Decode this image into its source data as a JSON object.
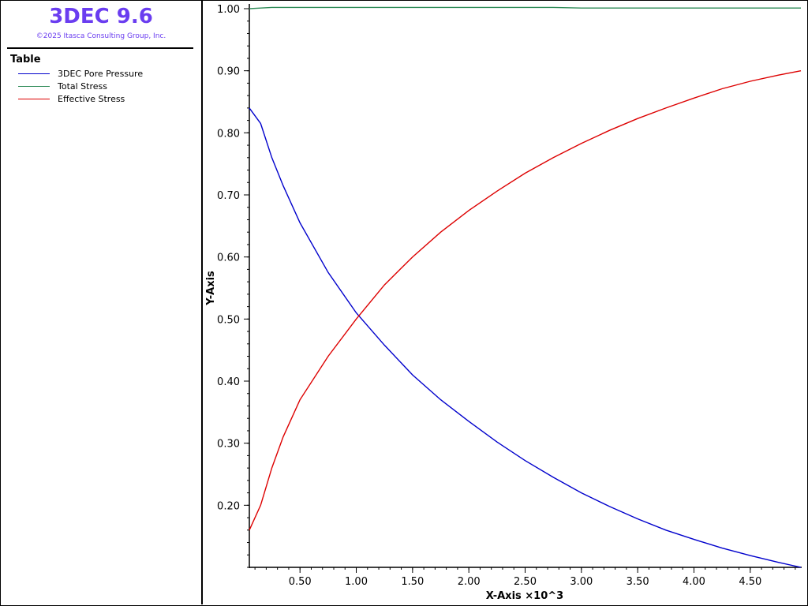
{
  "app": {
    "title": "3DEC 9.6",
    "copyright": "©2025 Itasca Consulting Group, Inc."
  },
  "legend": {
    "heading": "Table"
  },
  "chart_data": {
    "type": "line",
    "xlabel": "X-Axis ×10^3",
    "ylabel": "Y-Axis",
    "xlim": [
      0.05,
      4.95
    ],
    "ylim": [
      0.1,
      1.0
    ],
    "grid": false,
    "legend_placement": "left-panel",
    "x_ticks": [
      0.5,
      1.0,
      1.5,
      2.0,
      2.5,
      3.0,
      3.5,
      4.0,
      4.5
    ],
    "x_tick_labels": [
      "0.50",
      "1.00",
      "1.50",
      "2.00",
      "2.50",
      "3.00",
      "3.50",
      "4.00",
      "4.50"
    ],
    "y_ticks": [
      0.2,
      0.3,
      0.4,
      0.5,
      0.6,
      0.7,
      0.8,
      0.9,
      1.0
    ],
    "y_tick_labels": [
      "0.20",
      "0.30",
      "0.40",
      "0.50",
      "0.60",
      "0.70",
      "0.80",
      "0.90",
      "1.00"
    ],
    "x": [
      0.05,
      0.15,
      0.25,
      0.35,
      0.5,
      0.75,
      1.0,
      1.25,
      1.5,
      1.75,
      2.0,
      2.25,
      2.5,
      2.75,
      3.0,
      3.25,
      3.5,
      3.75,
      4.0,
      4.25,
      4.5,
      4.75,
      4.95
    ],
    "series": [
      {
        "name": "3DEC Pore Pressure",
        "color": "#0000cc",
        "values": [
          0.84,
          0.815,
          0.76,
          0.715,
          0.655,
          0.575,
          0.51,
          0.458,
          0.41,
          0.37,
          0.335,
          0.302,
          0.272,
          0.245,
          0.22,
          0.198,
          0.178,
          0.16,
          0.145,
          0.131,
          0.119,
          0.108,
          0.1
        ]
      },
      {
        "name": "Total Stress",
        "color": "#2e8b57",
        "values": [
          1.0,
          1.001,
          1.002,
          1.002,
          1.002,
          1.002,
          1.002,
          1.002,
          1.002,
          1.002,
          1.002,
          1.002,
          1.002,
          1.002,
          1.001,
          1.001,
          1.001,
          1.001,
          1.001,
          1.001,
          1.001,
          1.001,
          1.001
        ]
      },
      {
        "name": "Effective Stress",
        "color": "#dd0000",
        "values": [
          0.16,
          0.2,
          0.26,
          0.31,
          0.37,
          0.44,
          0.5,
          0.555,
          0.6,
          0.64,
          0.675,
          0.706,
          0.735,
          0.76,
          0.783,
          0.804,
          0.823,
          0.84,
          0.856,
          0.871,
          0.883,
          0.893,
          0.9
        ]
      }
    ]
  }
}
